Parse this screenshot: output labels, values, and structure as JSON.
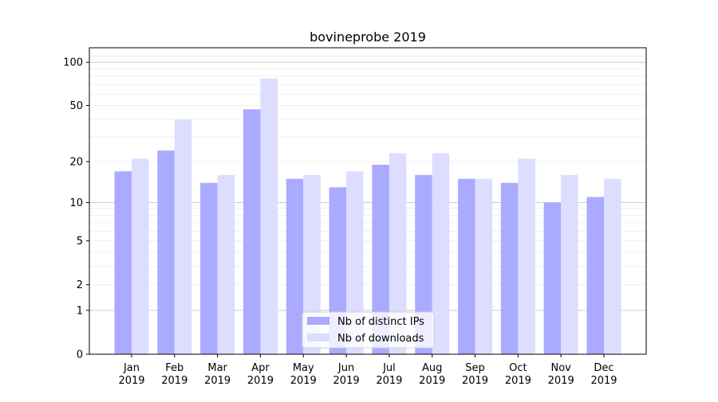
{
  "chart_data": {
    "type": "bar",
    "title": "bovineprobe 2019",
    "xlabel": "",
    "ylabel": "",
    "yscale": "log10(1+x)",
    "ylim": [
      0,
      115
    ],
    "yticks": [
      0,
      1,
      2,
      5,
      10,
      20,
      50,
      100
    ],
    "grid": true,
    "legend_placement": "bottom-center",
    "categories": [
      "Jan\n2019",
      "Feb\n2019",
      "Mar\n2019",
      "Apr\n2019",
      "May\n2019",
      "Jun\n2019",
      "Jul\n2019",
      "Aug\n2019",
      "Sep\n2019",
      "Oct\n2019",
      "Nov\n2019",
      "Dec\n2019"
    ],
    "series": [
      {
        "name": "Nb of distinct IPs",
        "color": "#aaaaff",
        "values": [
          17,
          24,
          14,
          47,
          15,
          13,
          19,
          16,
          15,
          14,
          10,
          11
        ]
      },
      {
        "name": "Nb of downloads",
        "color": "#ddddff",
        "values": [
          21,
          40,
          16,
          77,
          16,
          17,
          23,
          23,
          15,
          21,
          16,
          15
        ]
      }
    ]
  }
}
